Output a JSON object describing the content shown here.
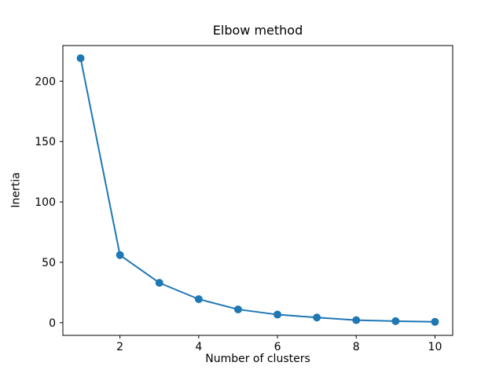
{
  "figure": {
    "background": "#ffffff",
    "text_color": "#000000"
  },
  "chart_data": {
    "type": "line",
    "title": "Elbow method",
    "xlabel": "Number of clusters",
    "ylabel": "Inertia",
    "grid": false,
    "legend": "none",
    "xlim": [
      0.55,
      10.45
    ],
    "ylim": [
      -10.5,
      229.5
    ],
    "x_ticks": [
      2,
      4,
      6,
      8,
      10
    ],
    "y_ticks": [
      0,
      50,
      100,
      150,
      200
    ],
    "series": [
      {
        "name": "inertia",
        "color": "#1f77b4",
        "marker": "circle",
        "x": [
          1,
          2,
          3,
          4,
          5,
          6,
          7,
          8,
          9,
          10
        ],
        "y": [
          219,
          56,
          33,
          19.5,
          11,
          6.7,
          4.3,
          2.1,
          1.3,
          0.7
        ]
      }
    ]
  }
}
